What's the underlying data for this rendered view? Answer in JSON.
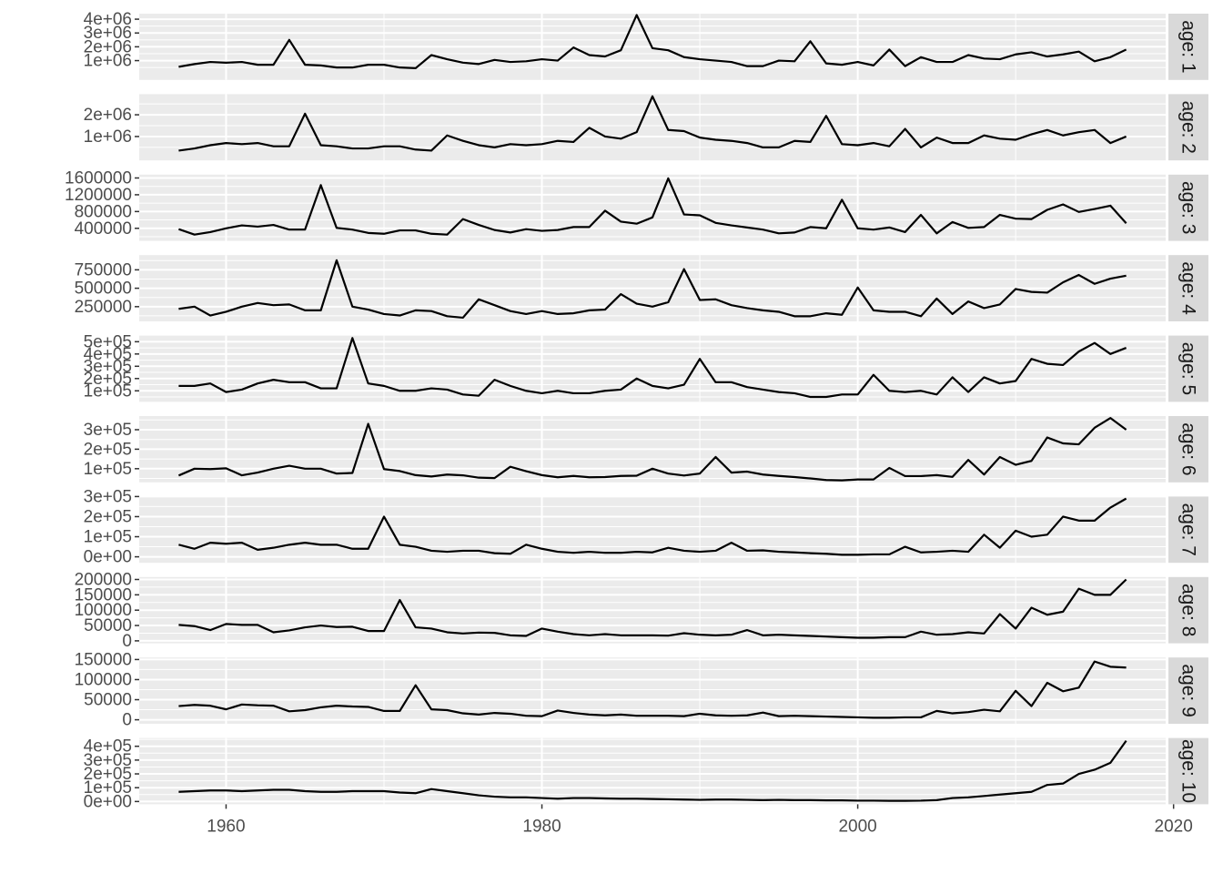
{
  "chart_data": {
    "type": "line",
    "layout": "faceted small multiples, stacked vertically, shared x axis, free y axes",
    "facet_prefix": "age",
    "x": [
      1957,
      1958,
      1959,
      1960,
      1961,
      1962,
      1963,
      1964,
      1965,
      1966,
      1967,
      1968,
      1969,
      1970,
      1971,
      1972,
      1973,
      1974,
      1975,
      1976,
      1977,
      1978,
      1979,
      1980,
      1981,
      1982,
      1983,
      1984,
      1985,
      1986,
      1987,
      1988,
      1989,
      1990,
      1991,
      1992,
      1993,
      1994,
      1995,
      1996,
      1997,
      1998,
      1999,
      2000,
      2001,
      2002,
      2003,
      2004,
      2005,
      2006,
      2007,
      2008,
      2009,
      2010,
      2011,
      2012,
      2013,
      2014,
      2015,
      2016,
      2017
    ],
    "xlim": [
      1954.5,
      2019.5
    ],
    "x_ticks": [
      1960,
      1980,
      2000,
      2020
    ],
    "x_tick_labels": [
      "1960",
      "1980",
      "2000",
      "2020"
    ],
    "grid": true,
    "panel_background": "#ebebeb",
    "strip_background": "#d9d9d9",
    "line_color": "#000000",
    "facets": [
      {
        "label": "age: 1",
        "ylim": [
          -400000,
          4400000
        ],
        "y_ticks": [
          1000000,
          2000000,
          3000000,
          4000000
        ],
        "y_tick_labels": [
          "1e+06",
          "2e+06",
          "3e+06",
          "4e+06"
        ],
        "values": [
          550000,
          750000,
          900000,
          850000,
          900000,
          700000,
          700000,
          2500000,
          700000,
          650000,
          500000,
          500000,
          700000,
          700000,
          500000,
          450000,
          1400000,
          1100000,
          850000,
          750000,
          1050000,
          900000,
          950000,
          1100000,
          1000000,
          1950000,
          1400000,
          1300000,
          1750000,
          4300000,
          1900000,
          1750000,
          1250000,
          1100000,
          1000000,
          900000,
          600000,
          600000,
          1000000,
          950000,
          2400000,
          800000,
          700000,
          900000,
          650000,
          1800000,
          600000,
          1250000,
          900000,
          900000,
          1400000,
          1150000,
          1100000,
          1450000,
          1600000,
          1300000,
          1450000,
          1650000,
          950000,
          1250000,
          1800000
        ]
      },
      {
        "label": "age: 2",
        "ylim": [
          -100000,
          2950000
        ],
        "y_ticks": [
          1000000,
          2000000
        ],
        "y_tick_labels": [
          "1e+06",
          "2e+06"
        ],
        "values": [
          350000,
          450000,
          600000,
          700000,
          650000,
          700000,
          550000,
          550000,
          2050000,
          600000,
          550000,
          450000,
          450000,
          550000,
          550000,
          400000,
          350000,
          1050000,
          800000,
          600000,
          500000,
          650000,
          600000,
          650000,
          800000,
          750000,
          1400000,
          1000000,
          900000,
          1200000,
          2850000,
          1300000,
          1250000,
          950000,
          850000,
          800000,
          700000,
          500000,
          500000,
          800000,
          750000,
          1950000,
          650000,
          600000,
          700000,
          550000,
          1350000,
          500000,
          950000,
          700000,
          700000,
          1050000,
          900000,
          850000,
          1100000,
          1300000,
          1050000,
          1200000,
          1300000,
          700000,
          1000000
        ]
      },
      {
        "label": "age: 3",
        "ylim": [
          100000,
          1680000
        ],
        "y_ticks": [
          400000,
          800000,
          1200000,
          1600000
        ],
        "y_tick_labels": [
          "400000",
          "800000",
          "1200000",
          "1600000"
        ],
        "values": [
          380000,
          250000,
          310000,
          400000,
          470000,
          440000,
          480000,
          370000,
          370000,
          1430000,
          410000,
          370000,
          290000,
          270000,
          350000,
          350000,
          270000,
          250000,
          620000,
          480000,
          360000,
          300000,
          380000,
          340000,
          360000,
          430000,
          430000,
          820000,
          560000,
          510000,
          660000,
          1590000,
          730000,
          710000,
          530000,
          470000,
          420000,
          370000,
          280000,
          300000,
          430000,
          400000,
          1080000,
          400000,
          370000,
          420000,
          310000,
          720000,
          280000,
          550000,
          410000,
          430000,
          720000,
          630000,
          620000,
          840000,
          970000,
          790000,
          860000,
          940000,
          520000
        ]
      },
      {
        "label": "age: 4",
        "ylim": [
          50000,
          950000
        ],
        "y_ticks": [
          250000,
          500000,
          750000
        ],
        "y_tick_labels": [
          "250000",
          "500000",
          "750000"
        ],
        "values": [
          220000,
          250000,
          130000,
          180000,
          250000,
          300000,
          270000,
          280000,
          200000,
          200000,
          880000,
          250000,
          210000,
          150000,
          130000,
          200000,
          190000,
          120000,
          100000,
          350000,
          270000,
          190000,
          150000,
          190000,
          150000,
          160000,
          200000,
          210000,
          420000,
          290000,
          250000,
          310000,
          760000,
          340000,
          350000,
          270000,
          230000,
          200000,
          180000,
          120000,
          120000,
          160000,
          140000,
          510000,
          200000,
          180000,
          180000,
          120000,
          360000,
          150000,
          320000,
          230000,
          280000,
          490000,
          450000,
          440000,
          580000,
          680000,
          560000,
          630000,
          670000
        ]
      },
      {
        "label": "age: 5",
        "ylim": [
          10000,
          550000
        ],
        "y_ticks": [
          100000,
          200000,
          300000,
          400000,
          500000
        ],
        "y_tick_labels": [
          "1e+05",
          "2e+05",
          "3e+05",
          "4e+05",
          "5e+05"
        ],
        "values": [
          140000,
          140000,
          160000,
          90000,
          110000,
          160000,
          190000,
          170000,
          170000,
          120000,
          120000,
          530000,
          160000,
          140000,
          100000,
          100000,
          120000,
          110000,
          70000,
          60000,
          190000,
          140000,
          100000,
          80000,
          100000,
          80000,
          80000,
          100000,
          110000,
          200000,
          140000,
          120000,
          150000,
          360000,
          170000,
          170000,
          130000,
          110000,
          90000,
          80000,
          50000,
          50000,
          70000,
          70000,
          230000,
          100000,
          90000,
          100000,
          70000,
          210000,
          90000,
          210000,
          160000,
          180000,
          360000,
          320000,
          310000,
          420000,
          490000,
          400000,
          450000
        ]
      },
      {
        "label": "age: 6",
        "ylim": [
          30000,
          370000
        ],
        "y_ticks": [
          100000,
          200000,
          300000
        ],
        "y_tick_labels": [
          "1e+05",
          "2e+05",
          "3e+05"
        ],
        "values": [
          65000,
          100000,
          98000,
          102000,
          66000,
          80000,
          100000,
          115000,
          100000,
          100000,
          75000,
          78000,
          330000,
          98000,
          88000,
          67000,
          60000,
          70000,
          66000,
          54000,
          52000,
          110000,
          87000,
          67000,
          56000,
          63000,
          56000,
          57000,
          63000,
          64000,
          100000,
          75000,
          65000,
          75000,
          160000,
          80000,
          85000,
          70000,
          63000,
          57000,
          50000,
          42000,
          40000,
          45000,
          45000,
          104000,
          62000,
          62000,
          67000,
          58000,
          145000,
          70000,
          160000,
          120000,
          140000,
          260000,
          230000,
          225000,
          310000,
          360000,
          300000
        ]
      },
      {
        "label": "age: 7",
        "ylim": [
          -30000,
          300000
        ],
        "y_ticks": [
          0,
          100000,
          200000,
          300000
        ],
        "y_tick_labels": [
          "0e+00",
          "1e+05",
          "2e+05",
          "3e+05"
        ],
        "values": [
          60000,
          40000,
          70000,
          65000,
          70000,
          35000,
          45000,
          60000,
          70000,
          60000,
          60000,
          40000,
          40000,
          200000,
          60000,
          50000,
          30000,
          25000,
          30000,
          30000,
          18000,
          15000,
          60000,
          40000,
          25000,
          20000,
          25000,
          20000,
          20000,
          25000,
          22000,
          45000,
          30000,
          25000,
          30000,
          70000,
          30000,
          32000,
          25000,
          22000,
          18000,
          15000,
          10000,
          10000,
          12000,
          12000,
          50000,
          22000,
          25000,
          30000,
          25000,
          110000,
          45000,
          130000,
          100000,
          110000,
          200000,
          180000,
          180000,
          245000,
          290000
        ]
      },
      {
        "label": "age: 8",
        "ylim": [
          -8000,
          208000
        ],
        "y_ticks": [
          0,
          50000,
          100000,
          150000,
          200000
        ],
        "y_tick_labels": [
          "0",
          "50000",
          "100000",
          "150000",
          "200000"
        ],
        "values": [
          52000,
          48000,
          35000,
          55000,
          52000,
          52000,
          28000,
          34000,
          44000,
          50000,
          45000,
          46000,
          32000,
          32000,
          133000,
          44000,
          40000,
          28000,
          24000,
          27000,
          26000,
          18000,
          16000,
          40000,
          30000,
          22000,
          18000,
          22000,
          18000,
          18000,
          18000,
          17000,
          25000,
          20000,
          18000,
          20000,
          35000,
          18000,
          20000,
          18000,
          16000,
          14000,
          12000,
          10000,
          10000,
          12000,
          12000,
          30000,
          20000,
          22000,
          28000,
          24000,
          87000,
          40000,
          108000,
          85000,
          95000,
          170000,
          150000,
          150000,
          200000
        ]
      },
      {
        "label": "age: 9",
        "ylim": [
          -10000,
          155000
        ],
        "y_ticks": [
          0,
          50000,
          100000,
          150000
        ],
        "y_tick_labels": [
          "0",
          "50000",
          "100000",
          "150000"
        ],
        "values": [
          34000,
          37000,
          35000,
          26000,
          38000,
          36000,
          35000,
          21000,
          24000,
          31000,
          35000,
          33000,
          32000,
          22000,
          22000,
          86000,
          26000,
          24000,
          16000,
          13000,
          17000,
          15000,
          10000,
          9000,
          23000,
          17000,
          13000,
          11000,
          13000,
          10000,
          10000,
          10000,
          9000,
          15000,
          11000,
          10000,
          11000,
          18000,
          9000,
          10000,
          9000,
          8000,
          7000,
          6000,
          5000,
          5000,
          6000,
          6000,
          22000,
          16000,
          19000,
          25000,
          21000,
          72000,
          34000,
          92000,
          71000,
          80000,
          145000,
          132000,
          130000
        ]
      },
      {
        "label": "age: 10",
        "ylim": [
          -20000,
          460000
        ],
        "y_ticks": [
          0,
          100000,
          200000,
          300000,
          400000
        ],
        "y_tick_labels": [
          "0e+00",
          "1e+05",
          "2e+05",
          "3e+05",
          "4e+05"
        ],
        "values": [
          70000,
          75000,
          80000,
          80000,
          75000,
          80000,
          85000,
          85000,
          75000,
          70000,
          70000,
          75000,
          75000,
          75000,
          65000,
          60000,
          90000,
          75000,
          60000,
          45000,
          35000,
          30000,
          30000,
          25000,
          20000,
          25000,
          25000,
          22000,
          20000,
          20000,
          18000,
          16000,
          14000,
          12000,
          14000,
          14000,
          12000,
          10000,
          12000,
          10000,
          10000,
          8000,
          8000,
          6000,
          6000,
          5000,
          5000,
          6000,
          10000,
          25000,
          30000,
          40000,
          50000,
          60000,
          70000,
          120000,
          130000,
          200000,
          230000,
          280000,
          440000
        ]
      }
    ]
  }
}
